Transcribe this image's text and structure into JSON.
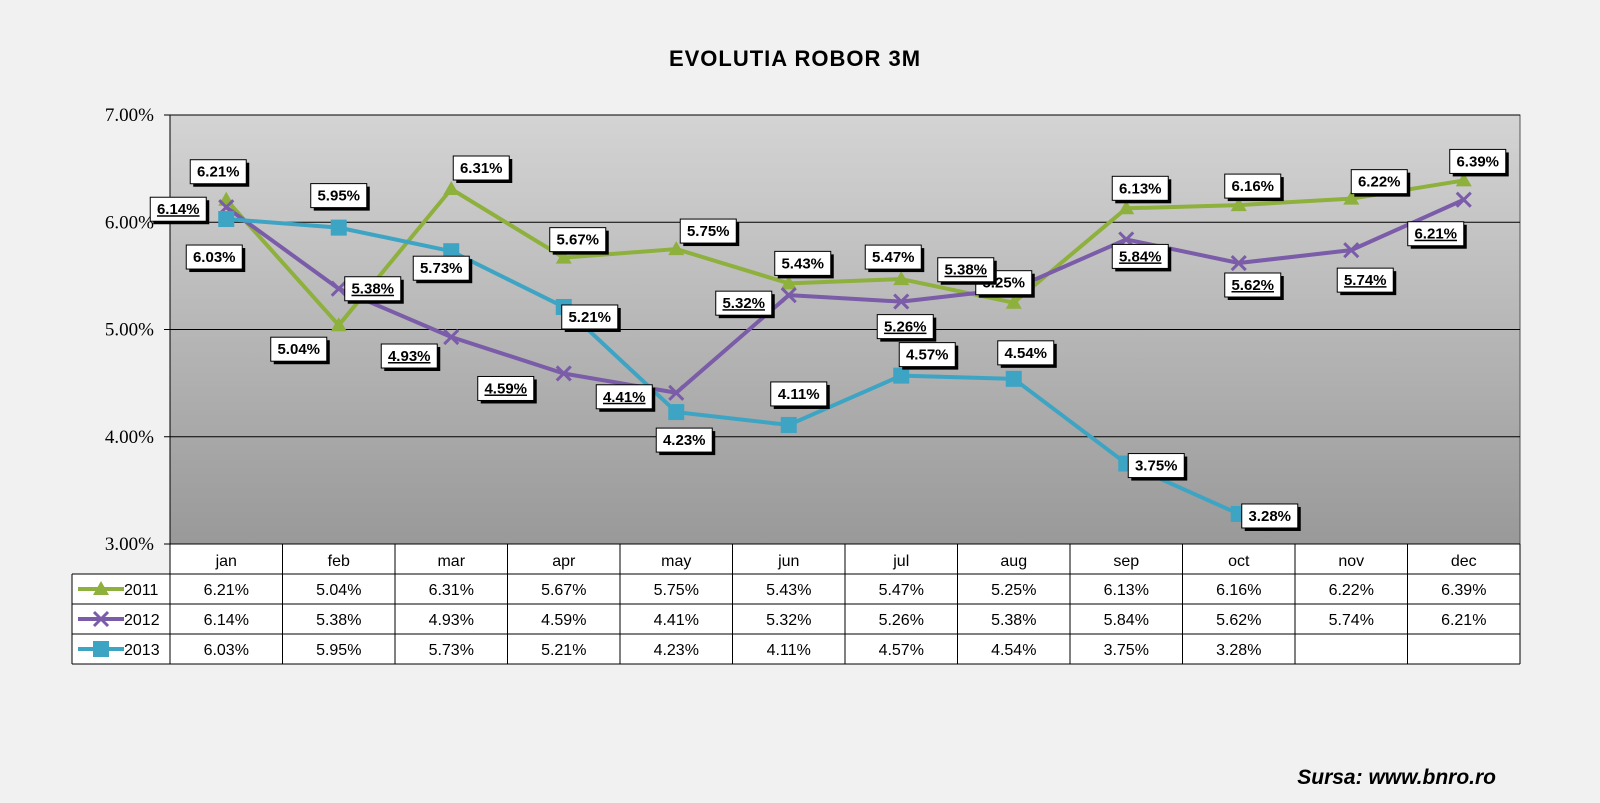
{
  "title": "EVOLUTIA ROBOR 3M",
  "source": "Sursa: www.bnro.ro",
  "colors": {
    "2011": "#8eb03c",
    "2012": "#7a5ca8",
    "2013": "#3ea4c4"
  },
  "chart_data": {
    "type": "line",
    "title": "EVOLUTIA ROBOR 3M",
    "categories": [
      "jan",
      "feb",
      "mar",
      "apr",
      "may",
      "jun",
      "jul",
      "aug",
      "sep",
      "oct",
      "nov",
      "dec"
    ],
    "series": [
      {
        "name": "2011",
        "marker": "triangle",
        "values": [
          6.21,
          5.04,
          6.31,
          5.67,
          5.75,
          5.43,
          5.47,
          5.25,
          6.13,
          6.16,
          6.22,
          6.39
        ],
        "labels": [
          "6.21%",
          "5.04%",
          "6.31%",
          "5.67%",
          "5.75%",
          "5.43%",
          "5.47%",
          "5.25%",
          "6.13%",
          "6.16%",
          "6.22%",
          "6.39%"
        ]
      },
      {
        "name": "2012",
        "marker": "x",
        "values": [
          6.14,
          5.38,
          4.93,
          4.59,
          4.41,
          5.32,
          5.26,
          5.38,
          5.84,
          5.62,
          5.74,
          6.21
        ],
        "labels": [
          "6.14%",
          "5.38%",
          "4.93%",
          "4.59%",
          "4.41%",
          "5.32%",
          "5.26%",
          "5.38%",
          "5.84%",
          "5.62%",
          "5.74%",
          "6.21%"
        ]
      },
      {
        "name": "2013",
        "marker": "square",
        "values": [
          6.03,
          5.95,
          5.73,
          5.21,
          4.23,
          4.11,
          4.57,
          4.54,
          3.75,
          3.28,
          null,
          null
        ],
        "labels": [
          "6.03%",
          "5.95%",
          "5.73%",
          "5.21%",
          "4.23%",
          "4.11%",
          "4.57%",
          "4.54%",
          "3.75%",
          "3.28%",
          "",
          ""
        ]
      }
    ],
    "yticks": [
      "3.00%",
      "4.00%",
      "5.00%",
      "6.00%",
      "7.00%"
    ],
    "ylim": [
      3,
      7
    ],
    "grid": true,
    "legend": "data-table"
  }
}
